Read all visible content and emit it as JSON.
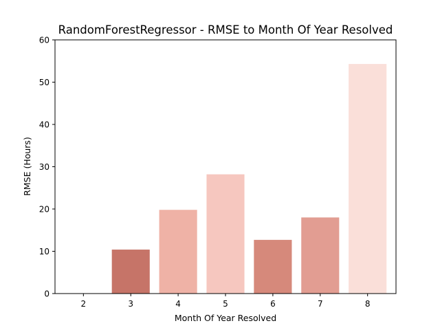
{
  "chart_data": {
    "type": "bar",
    "title": "RandomForestRegressor - RMSE to Month Of Year Resolved",
    "xlabel": "Month Of Year Resolved",
    "ylabel": "RMSE (Hours)",
    "categories": [
      "2",
      "3",
      "4",
      "5",
      "6",
      "7",
      "8"
    ],
    "values": [
      0,
      10.4,
      19.8,
      28.2,
      12.7,
      18.0,
      54.3
    ],
    "colors": [
      "#d98b7c",
      "#c67468",
      "#efb2a6",
      "#f6c7bf",
      "#d6897b",
      "#e29d92",
      "#fadfd9"
    ],
    "ylim": [
      0,
      60
    ],
    "yticks": [
      "0",
      "10",
      "20",
      "30",
      "40",
      "50",
      "60"
    ],
    "grid": false
  }
}
